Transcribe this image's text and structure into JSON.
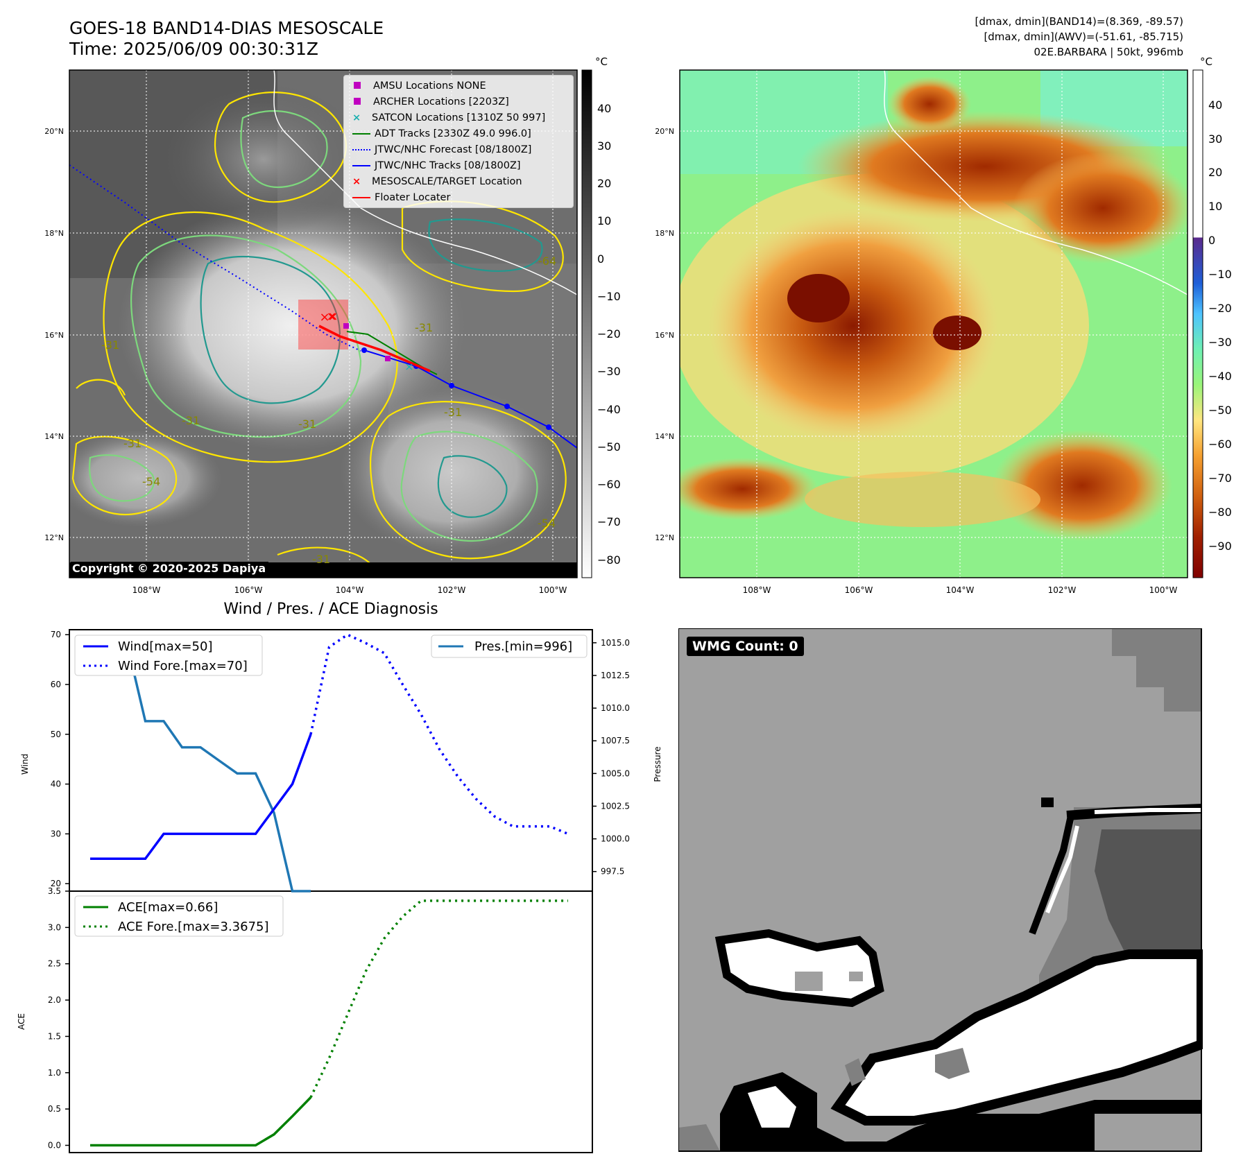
{
  "header": {
    "title": "GOES-18 BAND14-DIAS MESOSCALE",
    "time": "Time: 2025/06/09 00:30:31Z",
    "info_line1": "[dmax, dmin](BAND14)=(8.369, -89.57)",
    "info_line2": "[dmax, dmin](AWV)=(-51.61, -85.715)",
    "info_line3": "02E.BARBARA | 50kt, 996mb"
  },
  "map_ir": {
    "lat_labels": [
      "20°N",
      "18°N",
      "16°N",
      "14°N",
      "12°N"
    ],
    "lon_labels": [
      "108°W",
      "106°W",
      "104°W",
      "102°W",
      "100°W"
    ],
    "contour_labels": [
      "-31",
      "-31",
      "-31",
      "-31",
      "-54",
      "-54",
      "-64",
      "-31",
      "-31",
      "-31"
    ],
    "colorbar_unit": "°C",
    "colorbar_ticks": [
      "40",
      "30",
      "20",
      "10",
      "0",
      "−10",
      "−20",
      "−30",
      "−40",
      "−50",
      "−60",
      "−70",
      "−80"
    ],
    "copyright": "Copyright © 2020-2025 Dapiya",
    "legend": [
      {
        "label": "AMSU Locations NONE",
        "symbol": "square",
        "color": "#c000c0"
      },
      {
        "label": "ARCHER Locations [2203Z]",
        "symbol": "square",
        "color": "#c000c0"
      },
      {
        "label": "SATCON Locations [1310Z 50 997]",
        "symbol": "x",
        "color": "#1bb0b0"
      },
      {
        "label": "ADT Tracks [2330Z 49.0 996.0]",
        "symbol": "line",
        "color": "#008000"
      },
      {
        "label": "JTWC/NHC Forecast [08/1800Z]",
        "symbol": "dotted",
        "color": "#0000ff"
      },
      {
        "label": "JTWC/NHC Tracks [08/1800Z]",
        "symbol": "line-dot",
        "color": "#0000ff"
      },
      {
        "label": "MESOSCALE/TARGET Location",
        "symbol": "x",
        "color": "#ff0000"
      },
      {
        "label": "Floater Locater",
        "symbol": "line",
        "color": "#ff0000"
      }
    ]
  },
  "map_wv": {
    "lat_labels": [
      "20°N",
      "18°N",
      "16°N",
      "14°N",
      "12°N"
    ],
    "lon_labels": [
      "108°W",
      "106°W",
      "104°W",
      "102°W",
      "100°W"
    ],
    "colorbar_unit": "°C",
    "colorbar_ticks": [
      "40",
      "30",
      "20",
      "10",
      "0",
      "−10",
      "−20",
      "−30",
      "−40",
      "−50",
      "−60",
      "−70",
      "−80",
      "−90"
    ]
  },
  "diagnosis": {
    "title": "Wind / Pres. / ACE Diagnosis",
    "wind_ylabel": "Wind",
    "pressure_ylabel": "Pressure",
    "ace_ylabel": "ACE",
    "wind_ticks": [
      "70",
      "60",
      "50",
      "40",
      "30",
      "20"
    ],
    "pressure_ticks": [
      "1015.0",
      "1012.5",
      "1010.0",
      "1007.5",
      "1005.0",
      "1002.5",
      "1000.0",
      "997.5"
    ],
    "ace_ticks": [
      "3.5",
      "3.0",
      "2.5",
      "2.0",
      "1.5",
      "1.0",
      "0.5",
      "0.0"
    ],
    "legend_wind": "Wind[max=50]",
    "legend_wind_fore": "Wind Fore.[max=70]",
    "legend_pres": "Pres.[min=996]",
    "legend_ace": "ACE[max=0.66]",
    "legend_ace_fore": "ACE Fore.[max=3.3675]"
  },
  "wmg": {
    "label": "WMG Count: 0"
  },
  "chart_data": [
    {
      "type": "line",
      "title": "Wind / Pres. / ACE Diagnosis",
      "ylabel": "Wind",
      "ylim": [
        18.5,
        71
      ],
      "x_index": [
        0,
        1,
        2,
        3,
        4,
        5,
        6,
        7,
        8,
        9,
        10,
        11,
        12,
        13,
        14,
        15,
        16,
        17,
        18,
        19,
        20,
        21,
        22,
        23,
        24,
        25,
        26
      ],
      "series": [
        {
          "name": "Wind[max=50]",
          "color": "#0000ff",
          "style": "solid",
          "x": [
            0,
            1,
            2,
            3,
            4,
            5,
            6,
            7,
            8,
            9,
            10,
            11,
            12
          ],
          "values": [
            25,
            25,
            25,
            25,
            30,
            30,
            30,
            30,
            30,
            30,
            35,
            40,
            50
          ]
        },
        {
          "name": "Wind Fore.[max=70]",
          "color": "#0000ff",
          "style": "dotted",
          "x": [
            12,
            13,
            14,
            15,
            16,
            17,
            18,
            19,
            20,
            21,
            22,
            23,
            24,
            25,
            26
          ],
          "values": [
            50,
            67.5,
            70,
            68.3,
            66.3,
            60,
            54,
            47,
            41.5,
            37,
            33.5,
            31.5,
            31.5,
            31.5,
            30
          ]
        }
      ]
    },
    {
      "type": "line",
      "ylabel": "Pressure",
      "ylim": [
        996,
        1016
      ],
      "series": [
        {
          "name": "Pres.[min=996]",
          "color": "#1f77b4",
          "style": "solid",
          "x": [
            0,
            1,
            2,
            3,
            4,
            5,
            6,
            7,
            8,
            9,
            10,
            11,
            12
          ],
          "values": [
            1015,
            1015,
            1015,
            1009,
            1009,
            1007,
            1007,
            1006,
            1005,
            1005,
            1002,
            996,
            996
          ]
        }
      ]
    },
    {
      "type": "line",
      "ylabel": "ACE",
      "ylim": [
        -0.1,
        3.5
      ],
      "series": [
        {
          "name": "ACE[max=0.66]",
          "color": "#008000",
          "style": "solid",
          "x": [
            0,
            1,
            2,
            3,
            4,
            5,
            6,
            7,
            8,
            9,
            10,
            11,
            12
          ],
          "values": [
            0,
            0,
            0,
            0,
            0,
            0,
            0,
            0,
            0,
            0,
            0.15,
            0.4,
            0.66
          ]
        },
        {
          "name": "ACE Fore.[max=3.3675]",
          "color": "#008000",
          "style": "dotted",
          "x": [
            12,
            13,
            14,
            15,
            16,
            17,
            18,
            19,
            20,
            21,
            22,
            23,
            24,
            25,
            26
          ],
          "values": [
            0.66,
            1.2,
            1.8,
            2.4,
            2.85,
            3.15,
            3.3675,
            3.3675,
            3.3675,
            3.3675,
            3.3675,
            3.3675,
            3.3675,
            3.3675,
            3.3675
          ]
        }
      ]
    }
  ]
}
